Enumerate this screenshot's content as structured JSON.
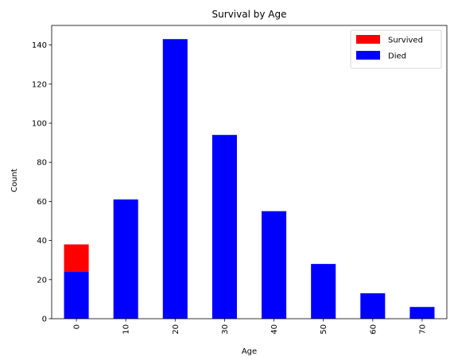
{
  "chart_data": {
    "type": "bar",
    "stacked": true,
    "title": "Survival by Age",
    "xlabel": "Age",
    "ylabel": "Count",
    "categories": [
      "0",
      "10",
      "20",
      "30",
      "40",
      "50",
      "60",
      "70"
    ],
    "yticks": [
      "0",
      "20",
      "40",
      "60",
      "80",
      "100",
      "120",
      "140"
    ],
    "ylim": [
      0,
      150
    ],
    "legend_position": "top-right",
    "grid": false,
    "series": [
      {
        "name": "Died",
        "color": "#0000ff",
        "values": [
          24,
          61,
          143,
          94,
          55,
          28,
          13,
          6
        ]
      },
      {
        "name": "Survived",
        "color": "#ff0000",
        "values": [
          14,
          0,
          0,
          0,
          0,
          0,
          0,
          0
        ]
      }
    ],
    "legend_order": [
      "Survived",
      "Died"
    ]
  }
}
